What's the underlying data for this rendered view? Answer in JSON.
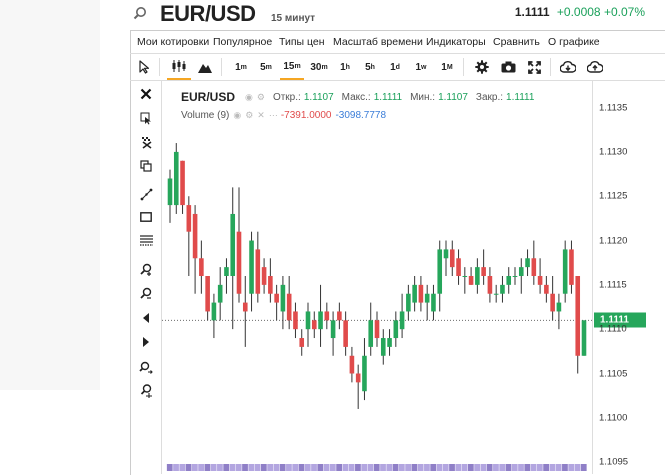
{
  "header": {
    "symbol": "EUR/USD",
    "interval": "15 минут",
    "price": "1.1111",
    "change": "+0.0008",
    "change_pct": "+0.07%"
  },
  "menu": [
    "Мои котировки",
    "Популярное",
    "Типы цен",
    "Масштаб времени",
    "Индикаторы",
    "Сравнить",
    "О графике"
  ],
  "toolbar": {
    "timeframes": [
      "1m",
      "5m",
      "15m",
      "30m",
      "1h",
      "5h",
      "1d",
      "1w",
      "1M"
    ],
    "active_timeframe": "15m"
  },
  "legend": {
    "symbol": "EUR/USD",
    "open_label": "Откр.:",
    "open": "1.1107",
    "high_label": "Макс.:",
    "high": "1.1111",
    "low_label": "Мин.:",
    "low": "1.1107",
    "close_label": "Закр.:",
    "close": "1.1111",
    "volume_label": "Volume (9)",
    "volume_value1": "-7391.0000",
    "volume_value2": "-3098.7778"
  },
  "colors": {
    "up": "#26a65b",
    "down": "#e04b4b",
    "accent": "#f5a623",
    "positive_text": "#1aa05a"
  },
  "chart_data": {
    "type": "candlestick",
    "y_ticks": [
      "1.1135",
      "1.1130",
      "1.1125",
      "1.1120",
      "1.1115",
      "1.1110",
      "1.1105",
      "1.1100",
      "1.1095"
    ],
    "current_price_label": "1.1111",
    "ylim": [
      1.1094,
      1.1138
    ],
    "candles": [
      {
        "o": 1.1124,
        "h": 1.1128,
        "l": 1.1122,
        "c": 1.1127
      },
      {
        "o": 1.1124,
        "h": 1.1131,
        "l": 1.1123,
        "c": 1.113
      },
      {
        "o": 1.1129,
        "h": 1.1129,
        "l": 1.1123,
        "c": 1.1124
      },
      {
        "o": 1.1124,
        "h": 1.1125,
        "l": 1.1116,
        "c": 1.1121
      },
      {
        "o": 1.1123,
        "h": 1.1124,
        "l": 1.1114,
        "c": 1.1118
      },
      {
        "o": 1.1118,
        "h": 1.112,
        "l": 1.1114,
        "c": 1.1116
      },
      {
        "o": 1.1116,
        "h": 1.1116,
        "l": 1.1111,
        "c": 1.1112
      },
      {
        "o": 1.1111,
        "h": 1.1114,
        "l": 1.1109,
        "c": 1.1113
      },
      {
        "o": 1.1113,
        "h": 1.1117,
        "l": 1.1111,
        "c": 1.1115
      },
      {
        "o": 1.1116,
        "h": 1.1118,
        "l": 1.1114,
        "c": 1.1117
      },
      {
        "o": 1.1116,
        "h": 1.1126,
        "l": 1.111,
        "c": 1.1123
      },
      {
        "o": 1.1121,
        "h": 1.1126,
        "l": 1.1113,
        "c": 1.1114
      },
      {
        "o": 1.1113,
        "h": 1.1116,
        "l": 1.1108,
        "c": 1.1112
      },
      {
        "o": 1.1114,
        "h": 1.1121,
        "l": 1.1112,
        "c": 1.112
      },
      {
        "o": 1.1119,
        "h": 1.1121,
        "l": 1.1113,
        "c": 1.1114
      },
      {
        "o": 1.1117,
        "h": 1.1118,
        "l": 1.1114,
        "c": 1.1115
      },
      {
        "o": 1.1116,
        "h": 1.1118,
        "l": 1.1113,
        "c": 1.1114
      },
      {
        "o": 1.1114,
        "h": 1.1115,
        "l": 1.1111,
        "c": 1.1113
      },
      {
        "o": 1.1112,
        "h": 1.1116,
        "l": 1.111,
        "c": 1.1115
      },
      {
        "o": 1.1114,
        "h": 1.1116,
        "l": 1.111,
        "c": 1.1111
      },
      {
        "o": 1.1112,
        "h": 1.1113,
        "l": 1.1109,
        "c": 1.111
      },
      {
        "o": 1.1109,
        "h": 1.111,
        "l": 1.1107,
        "c": 1.1108
      },
      {
        "o": 1.111,
        "h": 1.1113,
        "l": 1.1108,
        "c": 1.1112
      },
      {
        "o": 1.1111,
        "h": 1.1112,
        "l": 1.1109,
        "c": 1.111
      },
      {
        "o": 1.111,
        "h": 1.1115,
        "l": 1.1108,
        "c": 1.1112
      },
      {
        "o": 1.1112,
        "h": 1.1113,
        "l": 1.111,
        "c": 1.1111
      },
      {
        "o": 1.1109,
        "h": 1.1112,
        "l": 1.1107,
        "c": 1.1111
      },
      {
        "o": 1.1112,
        "h": 1.1113,
        "l": 1.111,
        "c": 1.1111
      },
      {
        "o": 1.1111,
        "h": 1.1112,
        "l": 1.1107,
        "c": 1.1108
      },
      {
        "o": 1.1107,
        "h": 1.1108,
        "l": 1.1104,
        "c": 1.1105
      },
      {
        "o": 1.1105,
        "h": 1.1106,
        "l": 1.1101,
        "c": 1.1104
      },
      {
        "o": 1.1103,
        "h": 1.1109,
        "l": 1.1102,
        "c": 1.1107
      },
      {
        "o": 1.1108,
        "h": 1.1113,
        "l": 1.1107,
        "c": 1.1111
      },
      {
        "o": 1.1111,
        "h": 1.1112,
        "l": 1.1108,
        "c": 1.1109
      },
      {
        "o": 1.1107,
        "h": 1.111,
        "l": 1.1106,
        "c": 1.1109
      },
      {
        "o": 1.1108,
        "h": 1.111,
        "l": 1.1107,
        "c": 1.1109
      },
      {
        "o": 1.1109,
        "h": 1.1112,
        "l": 1.1108,
        "c": 1.1111
      },
      {
        "o": 1.111,
        "h": 1.1114,
        "l": 1.1109,
        "c": 1.1112
      },
      {
        "o": 1.1112,
        "h": 1.1115,
        "l": 1.1111,
        "c": 1.1114
      },
      {
        "o": 1.1113,
        "h": 1.1116,
        "l": 1.1112,
        "c": 1.1115
      },
      {
        "o": 1.1115,
        "h": 1.1116,
        "l": 1.1112,
        "c": 1.1113
      },
      {
        "o": 1.1113,
        "h": 1.1115,
        "l": 1.1111,
        "c": 1.1114
      },
      {
        "o": 1.1112,
        "h": 1.1115,
        "l": 1.1111,
        "c": 1.1114
      },
      {
        "o": 1.1114,
        "h": 1.112,
        "l": 1.1112,
        "c": 1.1119
      },
      {
        "o": 1.1118,
        "h": 1.112,
        "l": 1.1116,
        "c": 1.1119
      },
      {
        "o": 1.1119,
        "h": 1.112,
        "l": 1.1116,
        "c": 1.1117
      },
      {
        "o": 1.1118,
        "h": 1.1119,
        "l": 1.1115,
        "c": 1.1116
      },
      {
        "o": 1.1116,
        "h": 1.1117,
        "l": 1.1114,
        "c": 1.1116
      },
      {
        "o": 1.1116,
        "h": 1.1117,
        "l": 1.1115,
        "c": 1.1115
      },
      {
        "o": 1.1115,
        "h": 1.1118,
        "l": 1.1114,
        "c": 1.1117
      },
      {
        "o": 1.1117,
        "h": 1.1119,
        "l": 1.1115,
        "c": 1.1116
      },
      {
        "o": 1.1116,
        "h": 1.1117,
        "l": 1.1113,
        "c": 1.1114
      },
      {
        "o": 1.1114,
        "h": 1.1115,
        "l": 1.1113,
        "c": 1.1114
      },
      {
        "o": 1.1114,
        "h": 1.1116,
        "l": 1.1113,
        "c": 1.1115
      },
      {
        "o": 1.1115,
        "h": 1.1117,
        "l": 1.1114,
        "c": 1.1116
      },
      {
        "o": 1.1116,
        "h": 1.1117,
        "l": 1.1115,
        "c": 1.1116
      },
      {
        "o": 1.1116,
        "h": 1.1118,
        "l": 1.1114,
        "c": 1.1117
      },
      {
        "o": 1.1117,
        "h": 1.1119,
        "l": 1.1116,
        "c": 1.1118
      },
      {
        "o": 1.1118,
        "h": 1.112,
        "l": 1.1115,
        "c": 1.1116
      },
      {
        "o": 1.1116,
        "h": 1.1118,
        "l": 1.1114,
        "c": 1.1115
      },
      {
        "o": 1.1115,
        "h": 1.1116,
        "l": 1.1113,
        "c": 1.1114
      },
      {
        "o": 1.1114,
        "h": 1.1116,
        "l": 1.1111,
        "c": 1.1112
      },
      {
        "o": 1.1112,
        "h": 1.1114,
        "l": 1.111,
        "c": 1.1113
      },
      {
        "o": 1.1114,
        "h": 1.112,
        "l": 1.1113,
        "c": 1.1119
      },
      {
        "o": 1.1119,
        "h": 1.112,
        "l": 1.1114,
        "c": 1.1115
      },
      {
        "o": 1.1116,
        "h": 1.1116,
        "l": 1.1105,
        "c": 1.1107
      },
      {
        "o": 1.1107,
        "h": 1.1111,
        "l": 1.1107,
        "c": 1.1111
      }
    ]
  }
}
